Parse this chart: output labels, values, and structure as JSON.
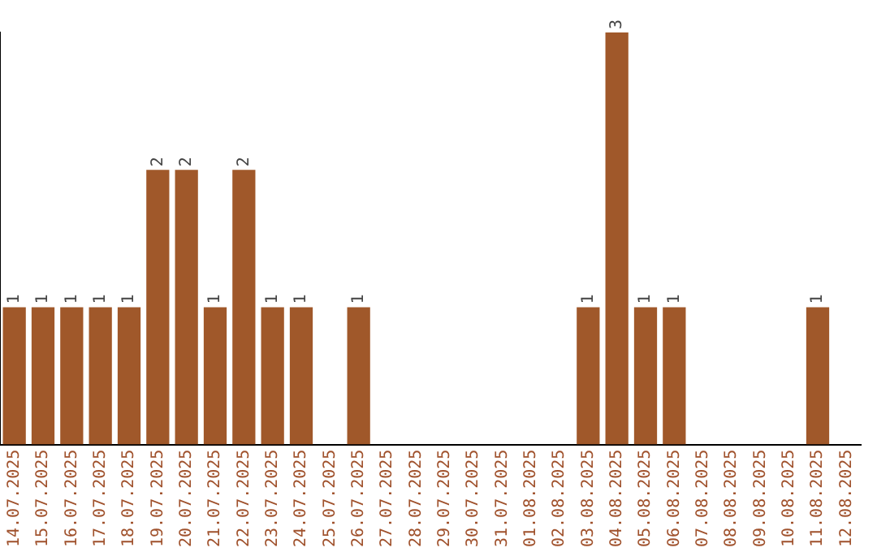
{
  "chart_data": {
    "type": "bar",
    "categories": [
      "14.07.2025",
      "15.07.2025",
      "16.07.2025",
      "17.07.2025",
      "18.07.2025",
      "19.07.2025",
      "20.07.2025",
      "21.07.2025",
      "22.07.2025",
      "23.07.2025",
      "24.07.2025",
      "25.07.2025",
      "26.07.2025",
      "27.07.2025",
      "28.07.2025",
      "29.07.2025",
      "30.07.2025",
      "31.07.2025",
      "01.08.2025",
      "02.08.2025",
      "03.08.2025",
      "04.08.2025",
      "05.08.2025",
      "06.08.2025",
      "07.08.2025",
      "08.08.2025",
      "09.08.2025",
      "10.08.2025",
      "11.08.2025",
      "12.08.2025"
    ],
    "values": [
      1,
      1,
      1,
      1,
      1,
      2,
      2,
      1,
      2,
      1,
      1,
      0,
      1,
      0,
      0,
      0,
      0,
      0,
      0,
      0,
      1,
      3,
      1,
      1,
      0,
      0,
      0,
      0,
      1,
      0
    ],
    "value_labels": [
      "1",
      "1",
      "1",
      "1",
      "1",
      "2",
      "2",
      "1",
      "2",
      "1",
      "1",
      null,
      "1",
      null,
      null,
      null,
      null,
      null,
      null,
      null,
      "1",
      "3",
      "1",
      "1",
      null,
      null,
      null,
      null,
      "1",
      null
    ],
    "color": "#a0582a",
    "ylim": [
      0,
      3
    ],
    "tick_labels": "x",
    "grid": false,
    "legend": false
  }
}
